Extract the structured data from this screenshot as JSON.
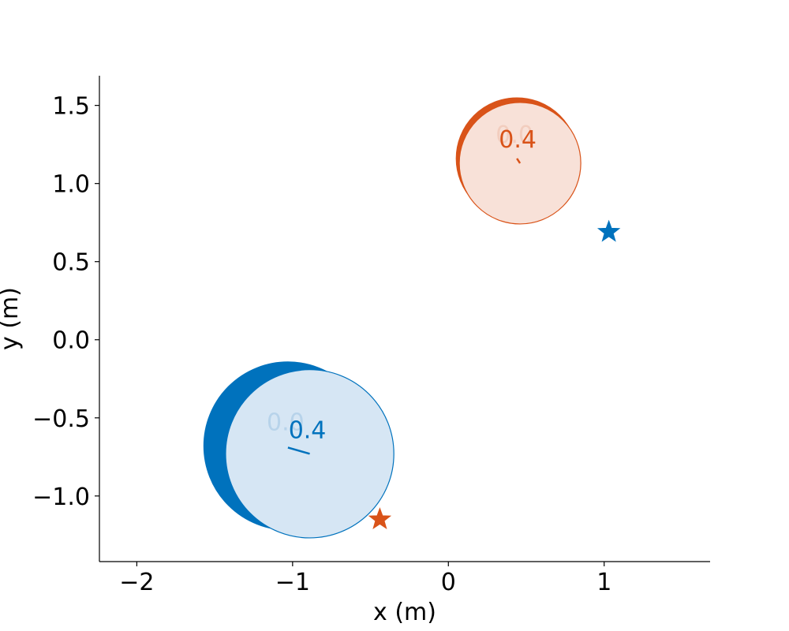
{
  "chart_data": {
    "type": "scatter",
    "title": "",
    "xlabel": "x (m)",
    "ylabel": "y (m)",
    "xlim": [
      -2.24,
      1.68
    ],
    "ylim": [
      -1.42,
      1.69
    ],
    "xticks": [
      -2,
      -1,
      0,
      1
    ],
    "xtick_labels": [
      "−2",
      "−1",
      "0",
      "1"
    ],
    "yticks": [
      -1.0,
      -0.5,
      0.0,
      0.5,
      1.0,
      1.5
    ],
    "ytick_labels": [
      "−1.0",
      "−0.5",
      "0.0",
      "0.5",
      "1.0",
      "1.5"
    ],
    "grid": false,
    "legend": "none",
    "agents": [
      {
        "color": "#0072bd",
        "fill_light": "#d6e6f4",
        "faded_label_color": "#b7d3ea",
        "radius": 0.54,
        "goal": {
          "x": 1.03,
          "y": 0.69
        },
        "states": [
          {
            "time": "0.0",
            "x": -1.03,
            "y": -0.68,
            "heading_end": {
              "x": -1.03,
              "y": -0.68
            },
            "style": "dark"
          },
          {
            "time": "0.4",
            "x": -0.89,
            "y": -0.73,
            "heading_end": {
              "x": -1.03,
              "y": -0.69
            },
            "style": "light"
          }
        ]
      },
      {
        "color": "#d95319",
        "fill_light": "#f8e1d8",
        "faded_label_color": "#f2cdbe",
        "radius": 0.39,
        "goal": {
          "x": -0.44,
          "y": -1.15
        },
        "states": [
          {
            "time": "0.0",
            "x": 0.44,
            "y": 1.16,
            "heading_end": {
              "x": 0.44,
              "y": 1.16
            },
            "style": "dark"
          },
          {
            "time": "0.4",
            "x": 0.46,
            "y": 1.13,
            "heading_end": {
              "x": 0.44,
              "y": 1.16
            },
            "style": "light"
          }
        ]
      }
    ]
  }
}
